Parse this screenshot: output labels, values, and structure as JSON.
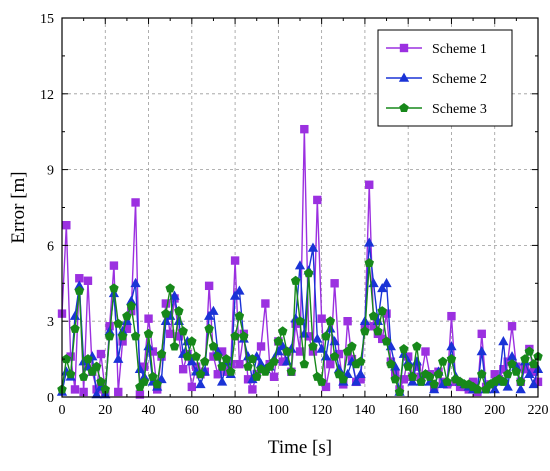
{
  "chart_data": {
    "type": "line",
    "xlabel": "Time [s]",
    "ylabel": "Error [m]",
    "xlim": [
      0,
      220
    ],
    "ylim": [
      0,
      15
    ],
    "xticks": [
      0,
      20,
      40,
      60,
      80,
      100,
      120,
      140,
      160,
      180,
      200,
      220
    ],
    "yticks": [
      0,
      3,
      6,
      9,
      12,
      15
    ],
    "grid": true,
    "legend_position": "top-right",
    "x": [
      0,
      2,
      4,
      6,
      8,
      10,
      12,
      14,
      16,
      18,
      20,
      22,
      24,
      26,
      28,
      30,
      32,
      34,
      36,
      38,
      40,
      42,
      44,
      46,
      48,
      50,
      52,
      54,
      56,
      58,
      60,
      62,
      64,
      66,
      68,
      70,
      72,
      74,
      76,
      78,
      80,
      82,
      84,
      86,
      88,
      90,
      92,
      94,
      96,
      98,
      100,
      102,
      104,
      106,
      108,
      110,
      112,
      114,
      116,
      118,
      120,
      122,
      124,
      126,
      128,
      130,
      132,
      134,
      136,
      138,
      140,
      142,
      144,
      146,
      148,
      150,
      152,
      154,
      156,
      158,
      160,
      162,
      164,
      166,
      168,
      170,
      172,
      174,
      176,
      178,
      180,
      182,
      184,
      186,
      188,
      190,
      192,
      194,
      196,
      198,
      200,
      202,
      204,
      206,
      208,
      210,
      212,
      214,
      216,
      218,
      220
    ],
    "series": [
      {
        "name": "Scheme 1",
        "color": "#9b30e0",
        "marker": "square",
        "values": [
          3.3,
          6.8,
          1.6,
          0.3,
          4.7,
          0.2,
          4.6,
          1.0,
          0.3,
          1.7,
          0.2,
          2.8,
          5.2,
          0.2,
          2.2,
          2.7,
          3.4,
          7.7,
          0.1,
          1.2,
          3.1,
          1.8,
          0.3,
          1.6,
          3.7,
          2.5,
          3.9,
          2.4,
          1.1,
          1.7,
          0.4,
          1.2,
          0.9,
          1.0,
          4.4,
          1.6,
          0.9,
          1.8,
          1.0,
          1.3,
          5.4,
          1.3,
          2.5,
          0.7,
          0.3,
          0.9,
          2.0,
          3.7,
          1.3,
          0.8,
          2.2,
          1.4,
          1.8,
          1.0,
          2.9,
          1.8,
          10.6,
          2.4,
          1.8,
          7.8,
          3.1,
          0.4,
          1.3,
          4.5,
          1.7,
          0.5,
          3.0,
          1.5,
          0.6,
          0.7,
          2.8,
          8.4,
          2.8,
          2.5,
          2.3,
          3.3,
          1.4,
          0.9,
          0.3,
          0.7,
          1.6,
          0.8,
          1.2,
          0.8,
          1.8,
          0.9,
          0.4,
          1.0,
          0.6,
          0.5,
          3.2,
          0.6,
          0.4,
          0.4,
          0.3,
          0.6,
          0.2,
          2.5,
          0.4,
          0.5,
          0.9,
          0.7,
          1.1,
          1.4,
          2.8,
          1.2,
          0.6,
          1.1,
          1.9,
          1.0,
          0.6
        ]
      },
      {
        "name": "Scheme 2",
        "color": "#1a33d6",
        "marker": "triangle",
        "values": [
          0.2,
          1.0,
          0.8,
          3.2,
          4.4,
          1.4,
          1.2,
          1.6,
          0.1,
          0.4,
          0.1,
          2.6,
          4.1,
          1.5,
          2.6,
          3.0,
          3.8,
          4.5,
          1.1,
          0.8,
          2.0,
          0.6,
          0.4,
          0.7,
          3.0,
          3.2,
          4.0,
          3.0,
          1.7,
          2.2,
          1.4,
          1.0,
          0.5,
          1.0,
          3.2,
          3.4,
          1.8,
          0.6,
          1.4,
          0.9,
          4.0,
          4.2,
          2.3,
          1.6,
          0.7,
          1.6,
          1.3,
          1.1,
          1.2,
          1.5,
          1.8,
          2.0,
          1.4,
          1.9,
          3.1,
          5.2,
          2.5,
          5.0,
          5.9,
          2.3,
          1.9,
          1.6,
          2.7,
          2.2,
          1.1,
          0.6,
          0.9,
          1.4,
          0.6,
          0.9,
          3.0,
          6.1,
          4.5,
          3.0,
          4.3,
          4.5,
          2.0,
          1.2,
          0.2,
          1.7,
          1.4,
          0.6,
          1.4,
          0.6,
          0.9,
          0.6,
          0.3,
          1.0,
          0.5,
          0.6,
          2.0,
          0.8,
          0.6,
          0.5,
          0.4,
          0.3,
          0.3,
          1.8,
          0.3,
          0.5,
          0.3,
          0.6,
          2.2,
          0.4,
          1.6,
          1.2,
          0.3,
          1.4,
          0.9,
          0.5,
          1.1
        ]
      },
      {
        "name": "Scheme 3",
        "color": "#17881a",
        "marker": "pentagon",
        "values": [
          0.3,
          1.5,
          0.9,
          2.7,
          4.2,
          0.8,
          1.5,
          1.0,
          1.2,
          0.6,
          0.3,
          2.4,
          4.3,
          2.9,
          2.4,
          3.2,
          3.6,
          2.4,
          0.4,
          0.6,
          2.5,
          0.8,
          0.5,
          1.7,
          3.3,
          4.3,
          2.0,
          3.4,
          2.6,
          1.6,
          2.2,
          1.6,
          0.9,
          1.4,
          2.7,
          2.0,
          1.6,
          1.2,
          1.5,
          1.0,
          2.4,
          3.2,
          2.4,
          1.2,
          1.5,
          0.8,
          1.1,
          1.0,
          1.2,
          1.4,
          2.2,
          2.6,
          1.8,
          1.0,
          4.6,
          3.0,
          1.3,
          4.9,
          2.0,
          0.8,
          0.6,
          2.4,
          3.0,
          1.6,
          0.9,
          0.7,
          1.8,
          2.0,
          1.3,
          1.4,
          2.6,
          5.3,
          3.2,
          2.6,
          3.4,
          2.2,
          1.3,
          0.7,
          0.2,
          1.9,
          1.2,
          0.8,
          2.0,
          0.6,
          0.9,
          0.8,
          0.5,
          0.9,
          1.4,
          0.6,
          1.5,
          0.7,
          0.6,
          0.5,
          0.5,
          0.4,
          0.3,
          0.9,
          0.3,
          0.5,
          0.6,
          0.7,
          0.6,
          0.9,
          1.3,
          1.0,
          0.6,
          1.5,
          1.8,
          1.3,
          1.6
        ]
      }
    ]
  }
}
